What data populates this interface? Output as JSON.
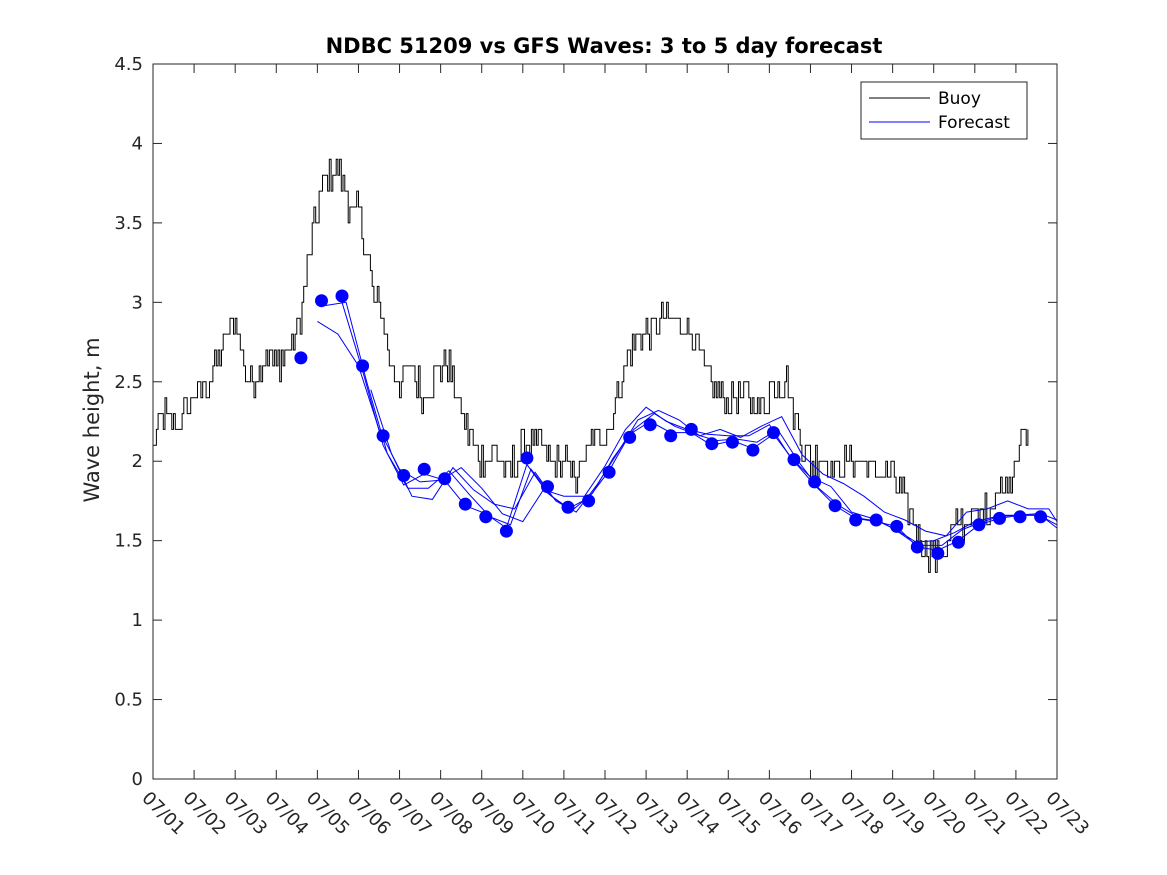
{
  "chart_data": {
    "type": "line",
    "title": "NDBC 51209 vs GFS Waves: 3 to 5 day forecast",
    "xlabel": "",
    "ylabel": "Wave height, m",
    "xlim": [
      0,
      22
    ],
    "ylim": [
      0,
      4.5
    ],
    "x_ticks": [
      "07/01",
      "07/02",
      "07/03",
      "07/04",
      "07/05",
      "07/06",
      "07/07",
      "07/08",
      "07/09",
      "07/10",
      "07/11",
      "07/12",
      "07/13",
      "07/14",
      "07/15",
      "07/16",
      "07/17",
      "07/18",
      "07/19",
      "07/20",
      "07/21",
      "07/22",
      "07/23"
    ],
    "y_ticks": [
      "0",
      "0.5",
      "1",
      "1.5",
      "2",
      "2.5",
      "3",
      "3.5",
      "4",
      "4.5"
    ],
    "legend": {
      "position": "top-right",
      "entries": [
        "Buoy",
        "Forecast"
      ]
    },
    "colors": {
      "buoy": "#000000",
      "forecast": "#0000ff",
      "axes": "#262626"
    },
    "buoy_anchors": [
      [
        0.0,
        2.1
      ],
      [
        0.25,
        2.3
      ],
      [
        0.5,
        2.2
      ],
      [
        0.75,
        2.3
      ],
      [
        1.0,
        2.4
      ],
      [
        1.3,
        2.5
      ],
      [
        1.5,
        2.6
      ],
      [
        1.8,
        2.8
      ],
      [
        2.0,
        2.9
      ],
      [
        2.3,
        2.5
      ],
      [
        2.5,
        2.5
      ],
      [
        2.8,
        2.7
      ],
      [
        3.0,
        2.6
      ],
      [
        3.3,
        2.7
      ],
      [
        3.6,
        2.9
      ],
      [
        3.8,
        3.3
      ],
      [
        4.0,
        3.6
      ],
      [
        4.2,
        3.8
      ],
      [
        4.5,
        3.85
      ],
      [
        4.8,
        3.6
      ],
      [
        5.0,
        3.55
      ],
      [
        5.2,
        3.3
      ],
      [
        5.4,
        3.0
      ],
      [
        5.6,
        2.9
      ],
      [
        5.8,
        2.6
      ],
      [
        6.0,
        2.5
      ],
      [
        6.3,
        2.6
      ],
      [
        6.6,
        2.4
      ],
      [
        7.0,
        2.6
      ],
      [
        7.2,
        2.6
      ],
      [
        7.4,
        2.4
      ],
      [
        7.6,
        2.2
      ],
      [
        7.8,
        2.1
      ],
      [
        8.0,
        2.0
      ],
      [
        8.3,
        2.1
      ],
      [
        8.6,
        1.9
      ],
      [
        9.0,
        2.1
      ],
      [
        9.4,
        2.1
      ],
      [
        9.7,
        2.0
      ],
      [
        10.0,
        2.0
      ],
      [
        10.3,
        1.9
      ],
      [
        10.6,
        2.1
      ],
      [
        10.9,
        2.2
      ],
      [
        11.1,
        2.2
      ],
      [
        11.3,
        2.4
      ],
      [
        11.5,
        2.6
      ],
      [
        11.8,
        2.8
      ],
      [
        12.0,
        2.8
      ],
      [
        12.2,
        2.8
      ],
      [
        12.4,
        2.9
      ],
      [
        12.6,
        2.9
      ],
      [
        12.8,
        2.9
      ],
      [
        13.0,
        2.85
      ],
      [
        13.2,
        2.75
      ],
      [
        13.4,
        2.6
      ],
      [
        13.6,
        2.5
      ],
      [
        13.8,
        2.4
      ],
      [
        14.0,
        2.4
      ],
      [
        14.2,
        2.4
      ],
      [
        14.5,
        2.4
      ],
      [
        14.8,
        2.35
      ],
      [
        15.0,
        2.45
      ],
      [
        15.2,
        2.5
      ],
      [
        15.4,
        2.5
      ],
      [
        15.6,
        2.3
      ],
      [
        15.8,
        2.1
      ],
      [
        16.0,
        2.0
      ],
      [
        16.3,
        2.0
      ],
      [
        16.6,
        1.95
      ],
      [
        17.0,
        2.0
      ],
      [
        17.3,
        1.95
      ],
      [
        17.6,
        1.95
      ],
      [
        18.0,
        1.9
      ],
      [
        18.3,
        1.75
      ],
      [
        18.5,
        1.6
      ],
      [
        18.7,
        1.5
      ],
      [
        19.0,
        1.4
      ],
      [
        19.3,
        1.45
      ],
      [
        19.6,
        1.6
      ],
      [
        19.9,
        1.65
      ],
      [
        20.1,
        1.65
      ],
      [
        20.4,
        1.75
      ],
      [
        20.7,
        1.85
      ],
      [
        20.9,
        1.95
      ],
      [
        21.0,
        2.05
      ],
      [
        21.15,
        2.15
      ],
      [
        21.3,
        2.1
      ]
    ],
    "buoy_noise": 0.1,
    "forecast_markers": [
      [
        3.6,
        2.65
      ],
      [
        4.1,
        3.01
      ],
      [
        4.6,
        3.04
      ],
      [
        5.1,
        2.6
      ],
      [
        5.6,
        2.16
      ],
      [
        6.1,
        1.91
      ],
      [
        6.6,
        1.95
      ],
      [
        7.1,
        1.89
      ],
      [
        7.6,
        1.73
      ],
      [
        8.1,
        1.65
      ],
      [
        8.6,
        1.56
      ],
      [
        9.1,
        2.02
      ],
      [
        9.6,
        1.84
      ],
      [
        10.1,
        1.71
      ],
      [
        10.6,
        1.75
      ],
      [
        11.1,
        1.93
      ],
      [
        11.6,
        2.15
      ],
      [
        12.1,
        2.23
      ],
      [
        12.6,
        2.16
      ],
      [
        13.1,
        2.2
      ],
      [
        13.6,
        2.11
      ],
      [
        14.1,
        2.12
      ],
      [
        14.6,
        2.07
      ],
      [
        15.1,
        2.18
      ],
      [
        15.6,
        2.01
      ],
      [
        16.1,
        1.87
      ],
      [
        16.6,
        1.72
      ],
      [
        17.1,
        1.63
      ],
      [
        17.6,
        1.63
      ],
      [
        18.1,
        1.59
      ],
      [
        18.6,
        1.46
      ],
      [
        19.1,
        1.42
      ],
      [
        19.6,
        1.49
      ],
      [
        20.1,
        1.6
      ],
      [
        20.6,
        1.64
      ],
      [
        21.1,
        1.65
      ],
      [
        21.6,
        1.65
      ]
    ],
    "forecast_lines": [
      [
        [
          4.0,
          2.88
        ],
        [
          4.5,
          2.8
        ],
        [
          5.0,
          2.6
        ],
        [
          5.5,
          2.2
        ],
        [
          6.0,
          1.95
        ],
        [
          6.5,
          1.87
        ],
        [
          7.0,
          1.88
        ],
        [
          7.5,
          1.96
        ],
        [
          8.0,
          1.83
        ],
        [
          8.5,
          1.67
        ],
        [
          9.0,
          1.62
        ],
        [
          9.5,
          1.82
        ],
        [
          10.0,
          1.78
        ],
        [
          10.5,
          1.78
        ],
        [
          11.0,
          1.97
        ],
        [
          11.5,
          2.2
        ],
        [
          12.0,
          2.34
        ],
        [
          12.5,
          2.25
        ],
        [
          13.0,
          2.2
        ],
        [
          13.5,
          2.17
        ],
        [
          14.0,
          2.16
        ],
        [
          14.5,
          2.16
        ],
        [
          15.0,
          2.23
        ],
        [
          15.5,
          2.03
        ],
        [
          16.0,
          1.9
        ],
        [
          16.5,
          1.84
        ],
        [
          17.0,
          1.68
        ],
        [
          17.5,
          1.64
        ],
        [
          18.0,
          1.58
        ],
        [
          18.5,
          1.49
        ],
        [
          19.0,
          1.5
        ],
        [
          19.5,
          1.55
        ],
        [
          20.0,
          1.62
        ],
        [
          20.5,
          1.65
        ],
        [
          21.0,
          1.66
        ],
        [
          21.5,
          1.67
        ],
        [
          22.0,
          1.6
        ]
      ],
      [
        [
          4.2,
          2.98
        ],
        [
          4.7,
          3.0
        ],
        [
          5.2,
          2.5
        ],
        [
          5.7,
          2.05
        ],
        [
          6.2,
          1.83
        ],
        [
          6.7,
          1.83
        ],
        [
          7.2,
          1.94
        ],
        [
          7.7,
          1.79
        ],
        [
          8.2,
          1.65
        ],
        [
          8.7,
          1.6
        ],
        [
          9.2,
          1.95
        ],
        [
          9.7,
          1.78
        ],
        [
          10.2,
          1.69
        ],
        [
          10.7,
          1.8
        ],
        [
          11.2,
          2.02
        ],
        [
          11.7,
          2.2
        ],
        [
          12.2,
          2.3
        ],
        [
          12.7,
          2.22
        ],
        [
          13.2,
          2.17
        ],
        [
          13.7,
          2.13
        ],
        [
          14.2,
          2.14
        ],
        [
          14.7,
          2.12
        ],
        [
          15.2,
          2.2
        ],
        [
          15.7,
          2.0
        ],
        [
          16.2,
          1.83
        ],
        [
          16.7,
          1.72
        ],
        [
          17.2,
          1.64
        ],
        [
          17.7,
          1.62
        ],
        [
          18.2,
          1.55
        ],
        [
          18.7,
          1.47
        ],
        [
          19.2,
          1.47
        ],
        [
          19.7,
          1.57
        ],
        [
          20.2,
          1.62
        ],
        [
          20.7,
          1.66
        ],
        [
          21.2,
          1.66
        ],
        [
          21.7,
          1.66
        ],
        [
          22.0,
          1.63
        ]
      ],
      [
        [
          4.6,
          3.0
        ],
        [
          5.1,
          2.57
        ],
        [
          5.6,
          2.1
        ],
        [
          6.1,
          1.85
        ],
        [
          6.6,
          1.92
        ],
        [
          7.1,
          1.88
        ],
        [
          7.6,
          1.72
        ],
        [
          8.1,
          1.67
        ],
        [
          8.6,
          1.58
        ],
        [
          9.1,
          1.98
        ],
        [
          9.6,
          1.8
        ],
        [
          10.1,
          1.7
        ],
        [
          10.6,
          1.77
        ],
        [
          11.1,
          1.94
        ],
        [
          11.6,
          2.17
        ],
        [
          12.1,
          2.25
        ],
        [
          12.6,
          2.18
        ],
        [
          13.1,
          2.18
        ],
        [
          13.6,
          2.1
        ],
        [
          14.1,
          2.13
        ],
        [
          14.6,
          2.08
        ],
        [
          15.1,
          2.17
        ],
        [
          15.6,
          2.0
        ],
        [
          16.1,
          1.85
        ],
        [
          16.6,
          1.72
        ],
        [
          17.1,
          1.64
        ],
        [
          17.6,
          1.62
        ],
        [
          18.1,
          1.59
        ],
        [
          18.6,
          1.46
        ],
        [
          19.1,
          1.44
        ],
        [
          19.6,
          1.5
        ],
        [
          20.1,
          1.6
        ],
        [
          20.6,
          1.64
        ],
        [
          21.1,
          1.66
        ],
        [
          21.6,
          1.66
        ],
        [
          22.0,
          1.58
        ]
      ],
      [
        [
          5.3,
          2.45
        ],
        [
          5.8,
          2.05
        ],
        [
          6.3,
          1.78
        ],
        [
          6.8,
          1.76
        ],
        [
          7.3,
          1.96
        ],
        [
          7.8,
          1.82
        ],
        [
          8.3,
          1.73
        ],
        [
          8.8,
          1.7
        ],
        [
          9.3,
          1.93
        ],
        [
          9.8,
          1.75
        ],
        [
          10.3,
          1.68
        ],
        [
          10.8,
          1.85
        ],
        [
          11.3,
          2.05
        ],
        [
          11.8,
          2.26
        ],
        [
          12.3,
          2.32
        ],
        [
          12.8,
          2.26
        ],
        [
          13.3,
          2.16
        ],
        [
          13.8,
          2.2
        ],
        [
          14.3,
          2.15
        ],
        [
          14.8,
          2.22
        ],
        [
          15.3,
          2.28
        ],
        [
          15.8,
          2.04
        ],
        [
          16.3,
          1.92
        ],
        [
          16.8,
          1.86
        ],
        [
          17.3,
          1.78
        ],
        [
          17.8,
          1.68
        ],
        [
          18.3,
          1.63
        ],
        [
          18.8,
          1.56
        ],
        [
          19.3,
          1.53
        ],
        [
          19.8,
          1.68
        ],
        [
          20.3,
          1.7
        ],
        [
          20.8,
          1.75
        ],
        [
          21.3,
          1.7
        ],
        [
          21.8,
          1.7
        ],
        [
          22.0,
          1.62
        ]
      ]
    ]
  }
}
